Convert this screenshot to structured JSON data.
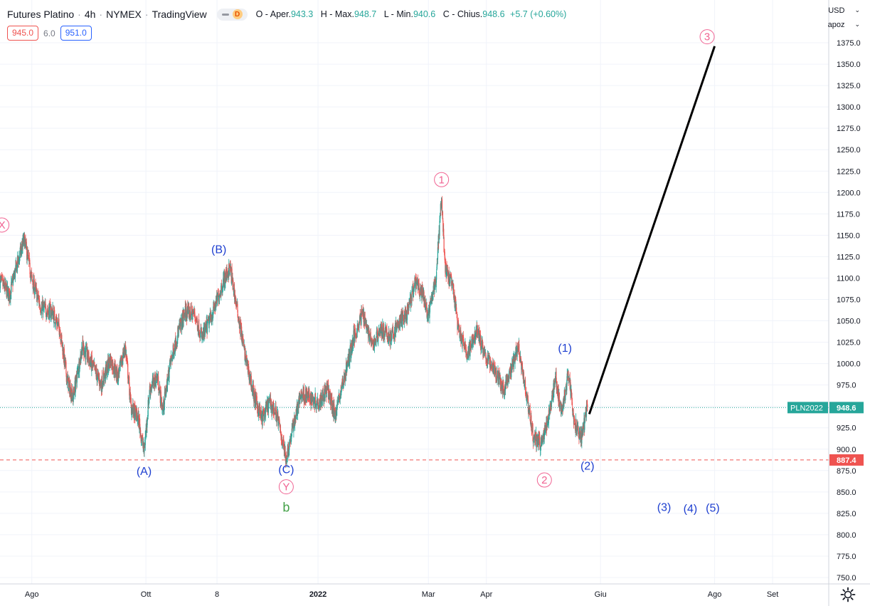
{
  "header": {
    "symbol_name": "Futures Platino",
    "interval": "4h",
    "exchange": "NYMEX",
    "source": "TradingView",
    "d_badge": "D",
    "ohlc": {
      "open_label": "O - Aper.",
      "open": "943.3",
      "high_label": "H - Max.",
      "high": "948.7",
      "low_label": "L - Min.",
      "low": "940.6",
      "close_label": "C - Chius.",
      "close": "948.6",
      "change": "+5.7 (+0.60%)"
    }
  },
  "quote": {
    "sell": "945.0",
    "spread": "6.0",
    "buy": "951.0"
  },
  "price_scale": {
    "currency": "USD",
    "mode": "apoz",
    "ticks": [
      750,
      775,
      800,
      825,
      850,
      875,
      900,
      925,
      950,
      975,
      1000,
      1025,
      1050,
      1075,
      1100,
      1125,
      1150,
      1175,
      1200,
      1225,
      1250,
      1275,
      1300,
      1325,
      1350,
      1375
    ],
    "tick_labels": [
      "750.0",
      "775.0",
      "800.0",
      "825.0",
      "850.0",
      "875.0",
      "900.0",
      "925.0",
      "950.0",
      "975.0",
      "1000.0",
      "1025.0",
      "1050.0",
      "1075.0",
      "1100.0",
      "1125.0",
      "1150.0",
      "1175.0",
      "1200.0",
      "1225.0",
      "1250.0",
      "1275.0",
      "1300.0",
      "1325.0",
      "1350.0",
      "1375.0"
    ]
  },
  "time_scale": {
    "labels": [
      "Ago",
      "Ott",
      "8",
      "2022",
      "Mar",
      "Apr",
      "Giu",
      "Ago",
      "Set"
    ],
    "label_dates": [
      "2021-08-01",
      "2021-10-01",
      "2021-11-08",
      "2022-01-01",
      "2022-03-01",
      "2022-04-01",
      "2022-06-01",
      "2022-08-01",
      "2022-09-01"
    ]
  },
  "chart_data": {
    "type": "candlestick",
    "interval": "4h",
    "y_range": [
      745,
      1395
    ],
    "x_range": [
      "2021-07-15",
      "2022-10-01"
    ],
    "colors": {
      "up": "#26a69a",
      "down": "#ef5350",
      "grid": "#f0f3fa",
      "last_price": "#26a69a",
      "support": "#ef5350"
    },
    "grid": true,
    "close_path": [
      [
        "2021-07-15",
        1097
      ],
      [
        "2021-07-20",
        1080
      ],
      [
        "2021-07-24",
        1115
      ],
      [
        "2021-07-28",
        1145
      ],
      [
        "2021-08-01",
        1098
      ],
      [
        "2021-08-06",
        1065
      ],
      [
        "2021-08-12",
        1060
      ],
      [
        "2021-08-16",
        1040
      ],
      [
        "2021-08-20",
        980
      ],
      [
        "2021-08-23",
        960
      ],
      [
        "2021-08-28",
        1020
      ],
      [
        "2021-09-03",
        995
      ],
      [
        "2021-09-07",
        975
      ],
      [
        "2021-09-12",
        1005
      ],
      [
        "2021-09-16",
        985
      ],
      [
        "2021-09-20",
        1020
      ],
      [
        "2021-09-23",
        950
      ],
      [
        "2021-09-27",
        935
      ],
      [
        "2021-09-30",
        897
      ],
      [
        "2021-10-03",
        970
      ],
      [
        "2021-10-07",
        985
      ],
      [
        "2021-10-10",
        945
      ],
      [
        "2021-10-14",
        1000
      ],
      [
        "2021-10-18",
        1035
      ],
      [
        "2021-10-22",
        1060
      ],
      [
        "2021-10-27",
        1058
      ],
      [
        "2021-10-31",
        1030
      ],
      [
        "2021-11-05",
        1055
      ],
      [
        "2021-11-09",
        1080
      ],
      [
        "2021-11-12",
        1100
      ],
      [
        "2021-11-15",
        1112
      ],
      [
        "2021-11-19",
        1060
      ],
      [
        "2021-11-23",
        1010
      ],
      [
        "2021-11-28",
        960
      ],
      [
        "2021-12-02",
        935
      ],
      [
        "2021-12-06",
        955
      ],
      [
        "2021-12-10",
        940
      ],
      [
        "2021-12-15",
        889
      ],
      [
        "2021-12-19",
        930
      ],
      [
        "2021-12-23",
        965
      ],
      [
        "2021-12-28",
        960
      ],
      [
        "2022-01-01",
        955
      ],
      [
        "2022-01-06",
        970
      ],
      [
        "2022-01-10",
        940
      ],
      [
        "2022-01-14",
        975
      ],
      [
        "2022-01-20",
        1030
      ],
      [
        "2022-01-25",
        1060
      ],
      [
        "2022-01-30",
        1020
      ],
      [
        "2022-02-03",
        1040
      ],
      [
        "2022-02-09",
        1030
      ],
      [
        "2022-02-14",
        1050
      ],
      [
        "2022-02-18",
        1060
      ],
      [
        "2022-02-22",
        1095
      ],
      [
        "2022-02-26",
        1080
      ],
      [
        "2022-03-01",
        1055
      ],
      [
        "2022-03-05",
        1100
      ],
      [
        "2022-03-08",
        1195
      ],
      [
        "2022-03-10",
        1110
      ],
      [
        "2022-03-14",
        1090
      ],
      [
        "2022-03-17",
        1040
      ],
      [
        "2022-03-22",
        1010
      ],
      [
        "2022-03-27",
        1040
      ],
      [
        "2022-03-31",
        1010
      ],
      [
        "2022-04-05",
        995
      ],
      [
        "2022-04-10",
        970
      ],
      [
        "2022-04-14",
        990
      ],
      [
        "2022-04-18",
        1022
      ],
      [
        "2022-04-22",
        970
      ],
      [
        "2022-04-26",
        915
      ],
      [
        "2022-04-30",
        905
      ],
      [
        "2022-05-04",
        935
      ],
      [
        "2022-05-08",
        985
      ],
      [
        "2022-05-11",
        940
      ],
      [
        "2022-05-15",
        990
      ],
      [
        "2022-05-18",
        930
      ],
      [
        "2022-05-22",
        915
      ],
      [
        "2022-05-25",
        948.6
      ]
    ],
    "last_price": {
      "symbol": "PLN2022",
      "value": 948.6,
      "label": "948.6"
    },
    "horizontal_line": {
      "value": 887.4,
      "label": "887.4"
    },
    "projection_line": [
      [
        "2022-05-26",
        941
      ],
      [
        "2022-08-01",
        1371
      ]
    ],
    "wave_labels": [
      {
        "text": "X",
        "date": "2021-07-16",
        "price": 1162,
        "color": "#f06292",
        "circled": true
      },
      {
        "text": "(A)",
        "date": "2021-09-30",
        "price": 875,
        "color": "#1e3fd0",
        "circled": false
      },
      {
        "text": "(B)",
        "date": "2021-11-09",
        "price": 1134,
        "color": "#1e3fd0",
        "circled": false
      },
      {
        "text": "(C)",
        "date": "2021-12-15",
        "price": 877,
        "color": "#1e3fd0",
        "circled": false
      },
      {
        "text": "Y",
        "date": "2021-12-15",
        "price": 856,
        "color": "#f06292",
        "circled": true
      },
      {
        "text": "b",
        "date": "2021-12-15",
        "price": 832,
        "color": "#43a047",
        "circled": false
      },
      {
        "text": "1",
        "date": "2022-03-08",
        "price": 1215,
        "color": "#f06292",
        "circled": true
      },
      {
        "text": "(1)",
        "date": "2022-05-13",
        "price": 1019,
        "color": "#1e3fd0",
        "circled": false
      },
      {
        "text": "2",
        "date": "2022-05-02",
        "price": 864,
        "color": "#f06292",
        "circled": true
      },
      {
        "text": "(2)",
        "date": "2022-05-25",
        "price": 881,
        "color": "#1e3fd0",
        "circled": false
      },
      {
        "text": "3",
        "date": "2022-07-28",
        "price": 1382,
        "color": "#f06292",
        "circled": true
      },
      {
        "text": "(3)",
        "date": "2022-07-05",
        "price": 833,
        "color": "#1e3fd0",
        "circled": false
      },
      {
        "text": "(4)",
        "date": "2022-07-19",
        "price": 831,
        "color": "#1e3fd0",
        "circled": false
      },
      {
        "text": "(5)",
        "date": "2022-07-31",
        "price": 832,
        "color": "#1e3fd0",
        "circled": false
      }
    ]
  }
}
